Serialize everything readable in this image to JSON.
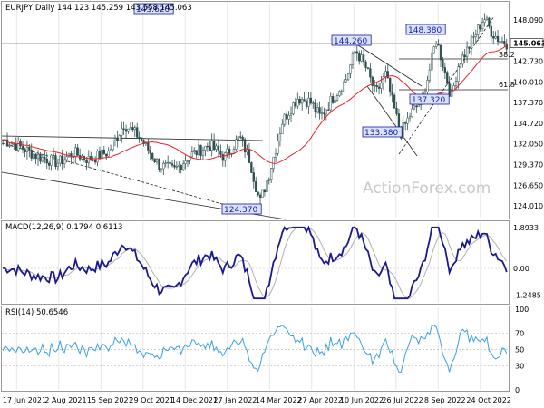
{
  "chart_data": [
    {
      "type": "candlestick",
      "header": "EURJPY,Daily  144.123 145.259 143.558 145.063",
      "ylim": [
        122.5,
        150.3
      ],
      "yticks": [
        "148.090",
        "145.063",
        "142.730",
        "140.010",
        "137.370",
        "134.720",
        "132.050",
        "129.370",
        "126.650",
        "124.010"
      ],
      "last_price": "145.063",
      "levels": [
        {
          "label": "144.260",
          "value": 144.26
        },
        {
          "label": "148.380",
          "value": 148.38
        },
        {
          "label": "145.620",
          "value": 145.62
        },
        {
          "label": "133.380",
          "value": 133.38
        },
        {
          "label": "137.320",
          "value": 137.32
        },
        {
          "label": "124.370",
          "value": 124.37
        }
      ],
      "fib_labels": [
        "38.2",
        "61.8"
      ],
      "watermark": "ActionForex.com"
    },
    {
      "type": "line",
      "header": "MACD(12,26,9) 0.1794 0.6113",
      "yticks": [
        "1.8933",
        "0.00",
        "-1.2485"
      ],
      "ylim": [
        -1.6,
        2.1
      ]
    },
    {
      "type": "line",
      "header": "RSI(14) 50.6546",
      "yticks": [
        "100",
        "70",
        "50",
        "30",
        "0"
      ],
      "ylim": [
        0,
        100
      ],
      "ref_lines": [
        30,
        50,
        70
      ]
    }
  ],
  "xticks": [
    "17 Jun 2021",
    "2 Aug 2021",
    "15 Sep 2021",
    "29 Oct 2021",
    "14 Dec 2021",
    "27 Jan 2022",
    "14 Mar 2022",
    "27 Apr 2022",
    "10 Jun 2022",
    "26 Jul 2022",
    "8 Sep 2022",
    "24 Oct 2022"
  ],
  "colors": {
    "price": "#2f4f4f",
    "ma": "#e8242a",
    "macd": "#1a1a8c",
    "signal": "#b0b0b0",
    "rsi": "#3aa0e8",
    "label_bg": "#d8e4ff",
    "label_border": "#1a1aa0"
  }
}
